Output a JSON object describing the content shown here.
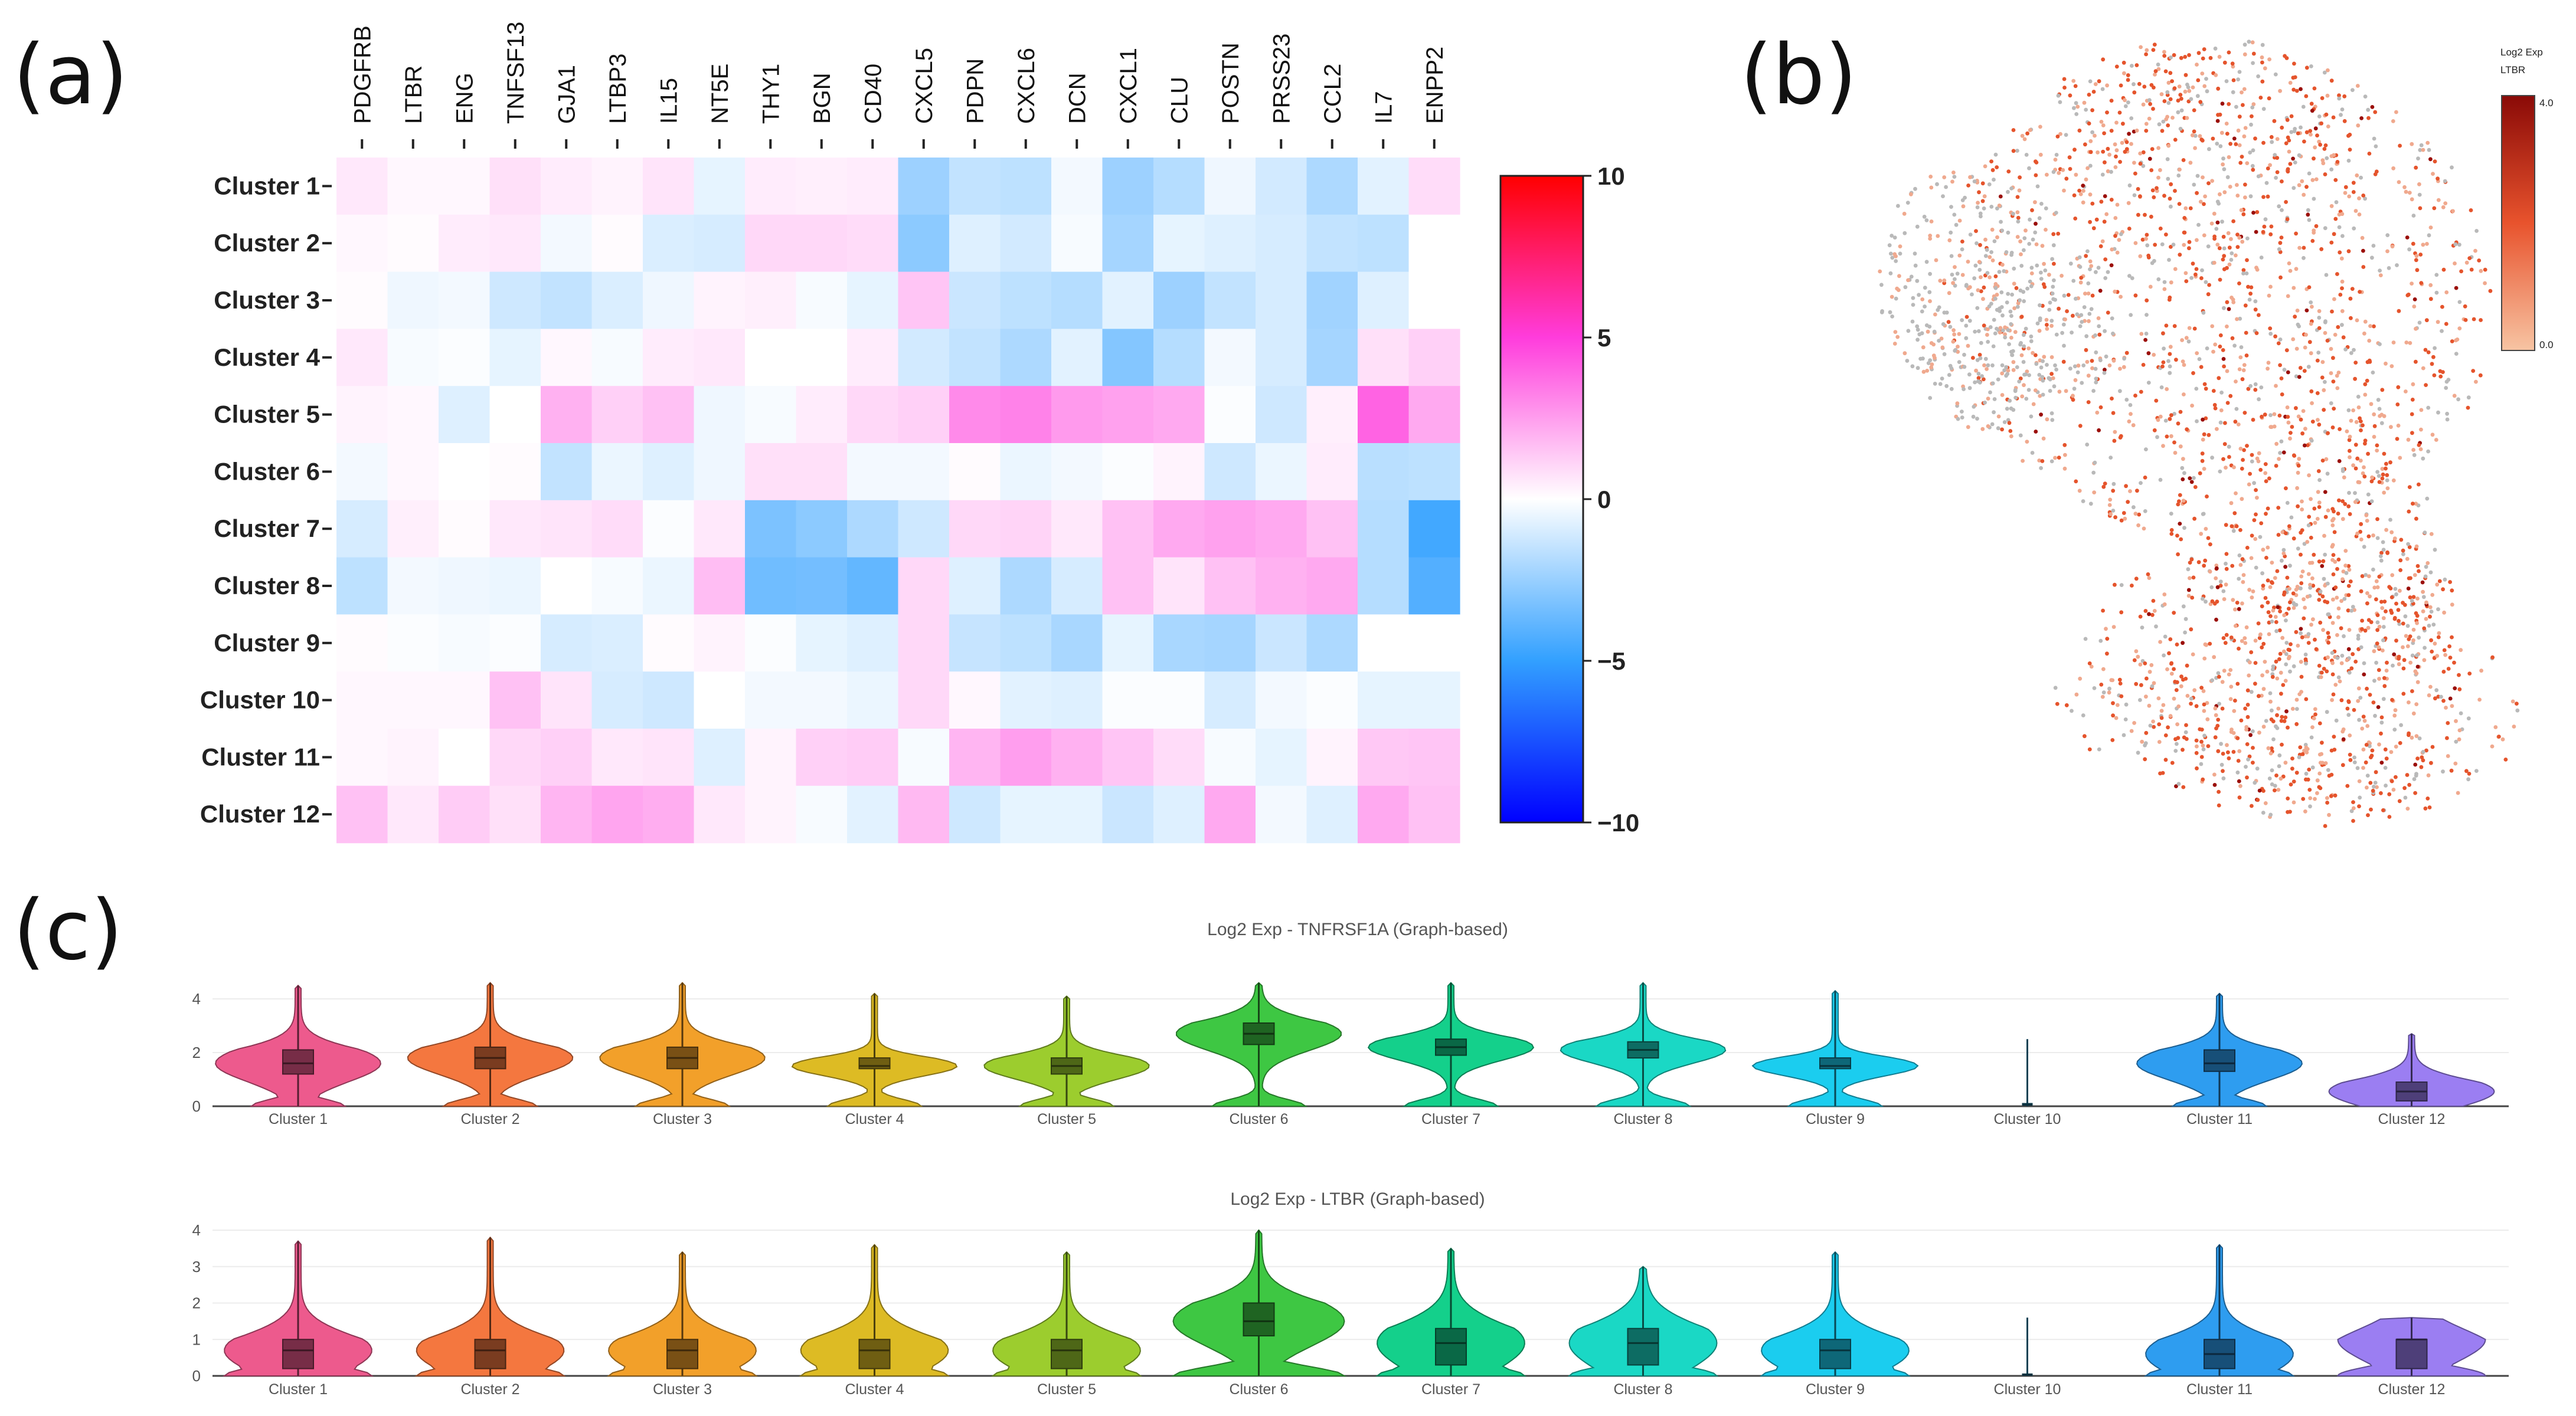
{
  "panels": {
    "a": "(a)",
    "b": "(b)",
    "c": "(c)"
  },
  "chart_data": [
    {
      "type": "heatmap",
      "panel": "(a)",
      "genes": [
        "PDGFRB",
        "LTBR",
        "ENG",
        "TNFSF13",
        "GJA1",
        "LTBP3",
        "IL15",
        "NT5E",
        "THY1",
        "BGN",
        "CD40",
        "CXCL5",
        "PDPN",
        "CXCL6",
        "DCN",
        "CXCL1",
        "CLU",
        "POSTN",
        "PRSS23",
        "CCL2",
        "IL7",
        "ENPP2"
      ],
      "clusters": [
        "Cluster 1",
        "Cluster 2",
        "Cluster 3",
        "Cluster 4",
        "Cluster 5",
        "Cluster 6",
        "Cluster 7",
        "Cluster 8",
        "Cluster 9",
        "Cluster 10",
        "Cluster 11",
        "Cluster 12"
      ],
      "values": [
        [
          0.6,
          0.2,
          0.2,
          0.8,
          0.5,
          0.3,
          0.7,
          -0.6,
          0.5,
          0.4,
          0.5,
          -2.4,
          -1.5,
          -1.6,
          -0.3,
          -2.4,
          -1.8,
          -0.4,
          -1.1,
          -2.0,
          -0.7,
          0.9
        ],
        [
          0.2,
          0.1,
          0.5,
          0.6,
          -0.3,
          0.1,
          -0.9,
          -1.0,
          1.0,
          1.0,
          0.9,
          -2.8,
          -0.8,
          -1.1,
          -0.2,
          -2.2,
          -0.6,
          -0.8,
          -1.0,
          -1.5,
          -1.6,
          0.0
        ],
        [
          0.1,
          -0.4,
          -0.3,
          -1.2,
          -1.5,
          -0.9,
          -0.4,
          0.3,
          0.4,
          -0.2,
          -0.6,
          1.5,
          -1.3,
          -1.6,
          -1.8,
          -0.7,
          -2.4,
          -1.5,
          -1.0,
          -2.3,
          -0.8,
          0.0
        ],
        [
          0.6,
          -0.2,
          -0.1,
          -0.6,
          0.2,
          -0.2,
          0.5,
          0.6,
          0.0,
          0.0,
          0.5,
          -1.1,
          -1.5,
          -2.0,
          -0.7,
          -3.0,
          -1.8,
          -0.3,
          -1.0,
          -2.2,
          0.8,
          1.2
        ],
        [
          0.3,
          0.2,
          -0.8,
          0.0,
          2.0,
          1.2,
          1.6,
          -0.4,
          -0.2,
          0.5,
          1.0,
          1.2,
          3.0,
          3.2,
          2.6,
          2.4,
          2.2,
          -0.1,
          -1.2,
          0.4,
          4.0,
          2.2
        ],
        [
          -0.3,
          0.2,
          0.0,
          0.1,
          -1.5,
          -0.5,
          -0.8,
          -0.4,
          0.8,
          0.8,
          -0.3,
          -0.3,
          0.1,
          -0.5,
          -0.3,
          -0.1,
          0.3,
          -1.2,
          -0.5,
          0.5,
          -1.7,
          -1.6
        ],
        [
          -1.0,
          0.4,
          0.1,
          0.6,
          0.7,
          0.9,
          -0.1,
          0.6,
          -3.2,
          -2.8,
          -2.0,
          -1.2,
          1.0,
          1.1,
          0.6,
          1.6,
          2.2,
          2.4,
          2.2,
          1.6,
          -1.8,
          -4.6
        ],
        [
          -1.6,
          -0.3,
          -0.4,
          -0.5,
          0.0,
          -0.2,
          -0.5,
          1.7,
          -3.5,
          -3.4,
          -3.8,
          1.0,
          -0.8,
          -2.0,
          -1.0,
          1.6,
          0.7,
          1.6,
          2.0,
          2.2,
          -1.8,
          -4.2
        ],
        [
          0.1,
          -0.1,
          -0.2,
          -0.1,
          -1.0,
          -0.9,
          0.1,
          0.3,
          -0.1,
          -0.6,
          -0.8,
          1.0,
          -1.4,
          -1.6,
          -2.1,
          -0.6,
          -2.1,
          -2.2,
          -1.3,
          -2.0,
          0.0,
          0.0
        ],
        [
          0.2,
          0.2,
          0.2,
          1.6,
          0.7,
          -1.0,
          -1.2,
          0.0,
          -0.3,
          -0.3,
          -0.5,
          1.0,
          0.2,
          -0.7,
          -0.8,
          -0.1,
          -0.1,
          -1.0,
          -0.3,
          -0.1,
          -0.6,
          -0.6
        ],
        [
          0.2,
          0.3,
          0.0,
          1.0,
          1.2,
          0.6,
          0.7,
          -0.8,
          0.3,
          1.2,
          1.3,
          -0.2,
          1.9,
          2.5,
          2.0,
          1.5,
          0.9,
          -0.2,
          -0.6,
          0.3,
          1.4,
          1.5
        ],
        [
          1.6,
          0.6,
          1.3,
          0.8,
          1.9,
          2.3,
          2.1,
          0.6,
          0.3,
          -0.2,
          -0.7,
          1.8,
          -1.2,
          -0.6,
          -0.6,
          -1.3,
          -0.8,
          2.2,
          -0.3,
          -0.8,
          2.2,
          1.6
        ]
      ],
      "colorbar": {
        "ticks": [
          "10",
          "5",
          "0",
          "−5",
          "−10"
        ],
        "range": [
          -10,
          10
        ]
      }
    },
    {
      "type": "scatter",
      "panel": "(b)",
      "legend": {
        "title": "Log2 Exp",
        "gene": "LTBR",
        "max": "4.0",
        "min": "0.0"
      },
      "palette": {
        "zero": "#b9b9b9",
        "low": "#f0a98e",
        "mid": "#e5542c",
        "high": "#9b0f0a"
      }
    },
    {
      "type": "violin",
      "panel": "(c)",
      "categories": [
        "Cluster 1",
        "Cluster 2",
        "Cluster 3",
        "Cluster 4",
        "Cluster 5",
        "Cluster 6",
        "Cluster 7",
        "Cluster 8",
        "Cluster 9",
        "Cluster 10",
        "Cluster 11",
        "Cluster 12"
      ],
      "colors": [
        "#ed5a8d",
        "#f4773f",
        "#f2a02a",
        "#ddbb24",
        "#9ccd2e",
        "#3ec743",
        "#14d08b",
        "#1ad8c5",
        "#1bcdef",
        "#2fbdf3",
        "#2e9df0",
        "#9b7ef2"
      ],
      "ylim": [
        0,
        4
      ],
      "yticks": [
        "0",
        "2",
        "4"
      ],
      "subplots": [
        {
          "title": "Log2 Exp - TNFRSF1A (Graph-based)",
          "yticks": [
            "0",
            "2",
            "4"
          ],
          "q1": [
            1.2,
            1.4,
            1.4,
            1.4,
            1.2,
            2.3,
            1.9,
            1.8,
            1.4,
            0.05,
            1.3,
            0.2
          ],
          "median": [
            1.6,
            1.8,
            1.8,
            1.5,
            1.5,
            2.7,
            2.2,
            2.1,
            1.5,
            0.05,
            1.6,
            0.55
          ],
          "q3": [
            2.1,
            2.2,
            2.2,
            1.8,
            1.8,
            3.1,
            2.5,
            2.4,
            1.8,
            0.1,
            2.1,
            0.9
          ],
          "max": [
            4.5,
            4.6,
            4.6,
            4.2,
            4.1,
            4.6,
            4.6,
            4.6,
            4.3,
            2.5,
            4.2,
            2.7
          ]
        },
        {
          "title": "Log2 Exp - LTBR (Graph-based)",
          "yticks": [
            "0",
            "1",
            "2",
            "3",
            "4"
          ],
          "q1": [
            0.2,
            0.2,
            0.2,
            0.2,
            0.2,
            1.1,
            0.3,
            0.3,
            0.2,
            0.02,
            0.2,
            0.2
          ],
          "median": [
            0.7,
            0.7,
            0.7,
            0.7,
            0.7,
            1.5,
            0.9,
            0.9,
            0.7,
            0.03,
            0.6,
            1.0
          ],
          "q3": [
            1.0,
            1.0,
            1.0,
            1.0,
            1.0,
            2.0,
            1.3,
            1.3,
            1.0,
            0.05,
            1.0,
            1.0
          ],
          "max": [
            3.7,
            3.8,
            3.4,
            3.6,
            3.4,
            4.0,
            3.5,
            3.0,
            3.4,
            1.6,
            3.6,
            1.6
          ]
        }
      ]
    }
  ]
}
